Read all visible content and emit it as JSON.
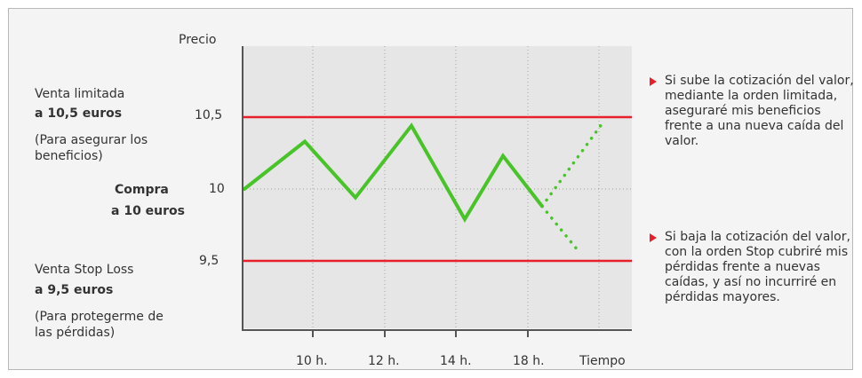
{
  "chart_data": {
    "type": "line",
    "ylabel": "Precio",
    "xlabel": "Tiempo",
    "x_ticks": [
      "10 h.",
      "12 h.",
      "14 h.",
      "18 h."
    ],
    "y_ticks": [
      "9,5",
      "10",
      "10,5"
    ],
    "ylim": [
      9.0,
      10.75
    ],
    "grid": true,
    "series": [
      {
        "values": [
          10.0,
          10.33,
          9.94,
          10.44,
          9.79,
          10.23,
          9.88
        ],
        "style": "solid",
        "color": "#48c428"
      },
      {
        "values": [
          9.88,
          10.45
        ],
        "style": "dotted",
        "color": "#48c428",
        "label": "up"
      },
      {
        "values": [
          9.88,
          9.56
        ],
        "style": "dotted",
        "color": "#48c428",
        "label": "down"
      }
    ],
    "reference_lines": [
      {
        "value": 10.5,
        "color": "#e8202a"
      },
      {
        "value": 10.0,
        "style": "dotted",
        "color": "#9a9a9a"
      },
      {
        "value": 9.5,
        "color": "#e8202a"
      }
    ]
  },
  "labels": {
    "venta_limitada": "Venta limitada",
    "venta_limitada_price": "a 10,5 euros",
    "venta_limitada_note_1": "(Para asegurar los",
    "venta_limitada_note_2": "beneficios)",
    "compra": "Compra",
    "compra_price": "a 10 euros",
    "stop_loss": "Venta Stop Loss",
    "stop_loss_price": "a 9,5 euros",
    "stop_loss_note_1": "(Para protegerme de",
    "stop_loss_note_2": "las pérdidas)"
  },
  "notes": {
    "up": "Si sube la cotización del valor, mediante la orden limitada, aseguraré mis beneficios frente a una nueva caída del valor.",
    "down": "Si baja la cotización del valor, con la orden Stop cubriré mis pérdidas frente a nuevas caídas, y así no incurriré en pérdidas mayores."
  },
  "colors": {
    "accent": "#e8202a",
    "line": "#48c428",
    "plot_bg": "#e6e6e6",
    "panel_bg": "#f4f4f4"
  }
}
